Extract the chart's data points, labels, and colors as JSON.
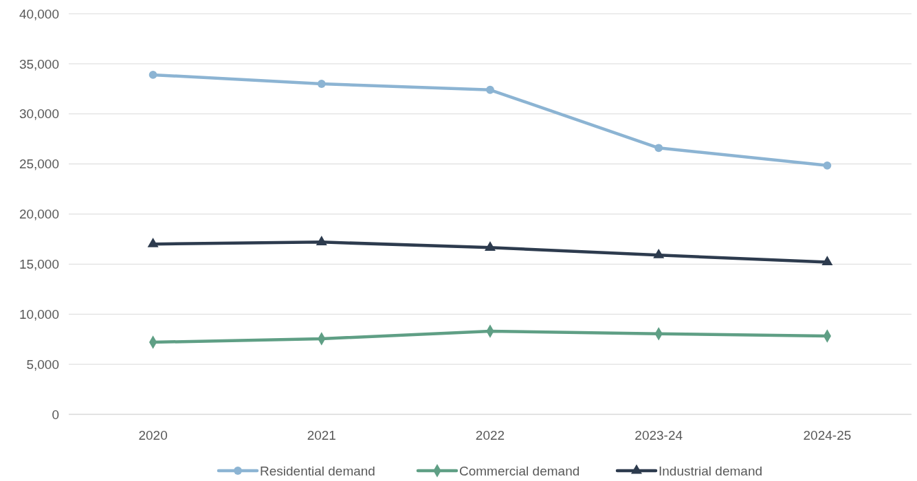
{
  "chart_data": {
    "type": "line",
    "categories": [
      "2020",
      "2021",
      "2022",
      "2023-24",
      "2024-25"
    ],
    "series": [
      {
        "name": "Residential demand",
        "color": "#8cb4d3",
        "marker": "circle",
        "values": [
          33900,
          33000,
          32400,
          26600,
          24850
        ]
      },
      {
        "name": "Commercial demand",
        "color": "#5f9f85",
        "marker": "diamond",
        "values": [
          7200,
          7550,
          8300,
          8050,
          7820
        ]
      },
      {
        "name": "Industrial demand",
        "color": "#2d3b4e",
        "marker": "triangle",
        "values": [
          17000,
          17200,
          16650,
          15900,
          15200
        ]
      }
    ],
    "ylim": [
      0,
      40000
    ],
    "yticks": [
      {
        "value": 0,
        "label": "0"
      },
      {
        "value": 5000,
        "label": "5,000"
      },
      {
        "value": 10000,
        "label": "10,000"
      },
      {
        "value": 15000,
        "label": "15,000"
      },
      {
        "value": 20000,
        "label": "20,000"
      },
      {
        "value": 25000,
        "label": "25,000"
      },
      {
        "value": 30000,
        "label": "30,000"
      },
      {
        "value": 35000,
        "label": "35,000"
      },
      {
        "value": 40000,
        "label": "40,000"
      }
    ],
    "grid": "y",
    "legend": "bottom",
    "line_style": "solid"
  }
}
